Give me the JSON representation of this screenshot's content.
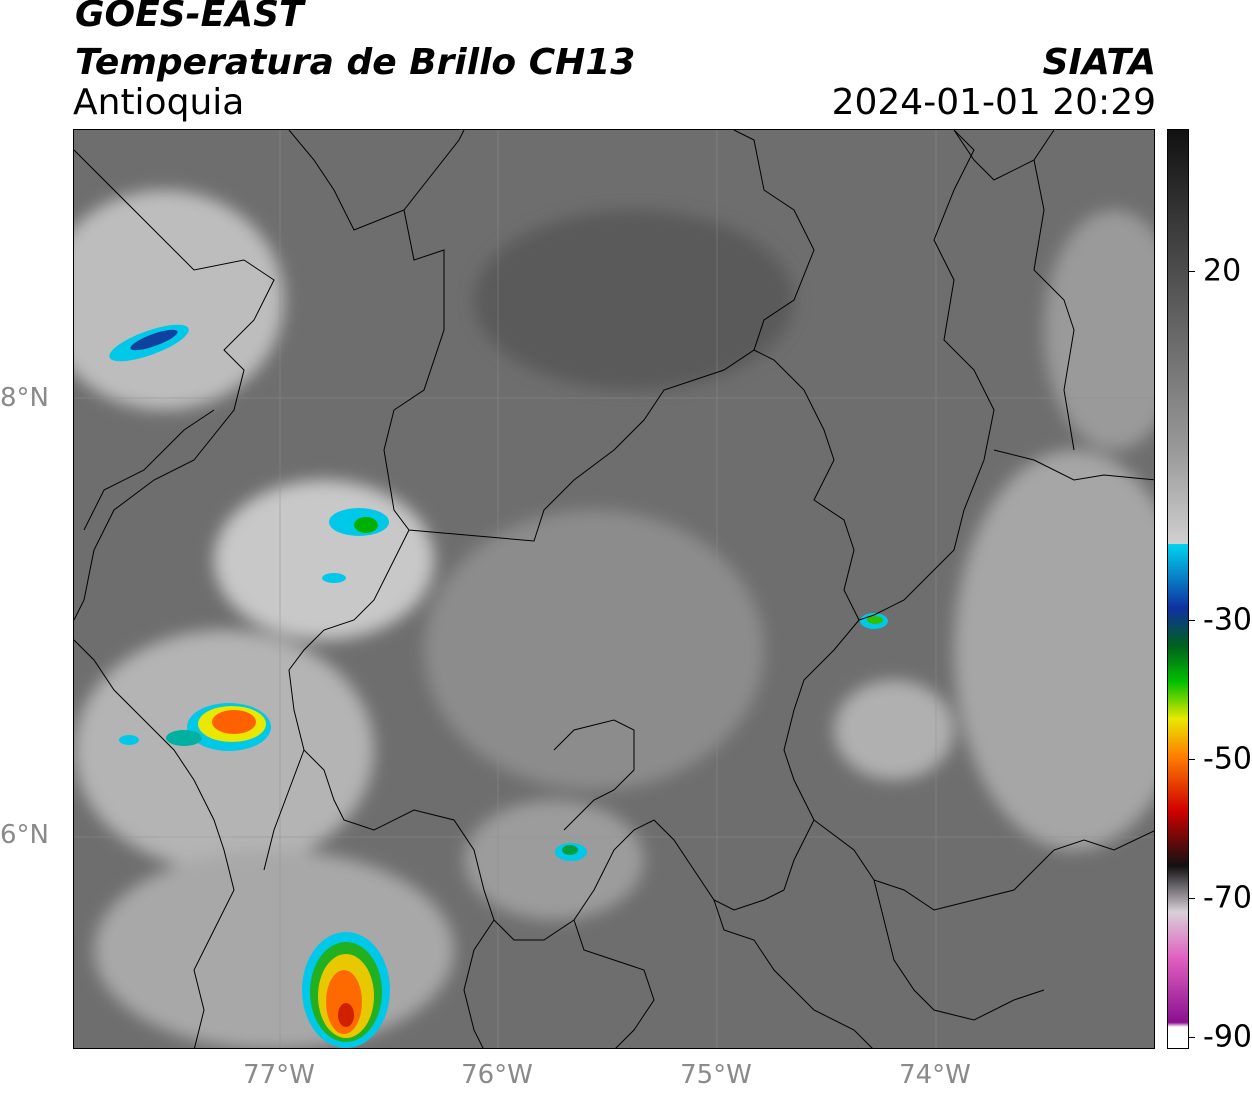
{
  "header": {
    "satellite": "GOES-EAST",
    "product": "Temperatura de Brillo CH13",
    "region": "Antioquia",
    "organization": "SIATA",
    "datetime": "2024-01-01 20:29"
  },
  "map": {
    "lat_ticks": [
      {
        "label": "8°N",
        "value": 8
      },
      {
        "label": "6°N",
        "value": 6
      }
    ],
    "lon_ticks": [
      {
        "label": "77°W",
        "value": -77
      },
      {
        "label": "76°W",
        "value": -76
      },
      {
        "label": "75°W",
        "value": -75
      },
      {
        "label": "74°W",
        "value": -74
      }
    ],
    "gridlines": true
  },
  "colorbar": {
    "ticks": [
      {
        "label": "20",
        "value": 20
      },
      {
        "label": "-30",
        "value": -30
      },
      {
        "label": "-50",
        "value": -50
      },
      {
        "label": "-70",
        "value": -70
      },
      {
        "label": "-90",
        "value": -90
      }
    ],
    "colors": {
      "warm_dark": "#111111",
      "cold_white": "#f5f5f5",
      "cyan": "#00d4f0",
      "blue": "#1030a0",
      "green": "#00c000",
      "yellow": "#e8e800",
      "orange": "#ff8000",
      "red": "#d00000",
      "magenta": "#c020b0"
    }
  }
}
